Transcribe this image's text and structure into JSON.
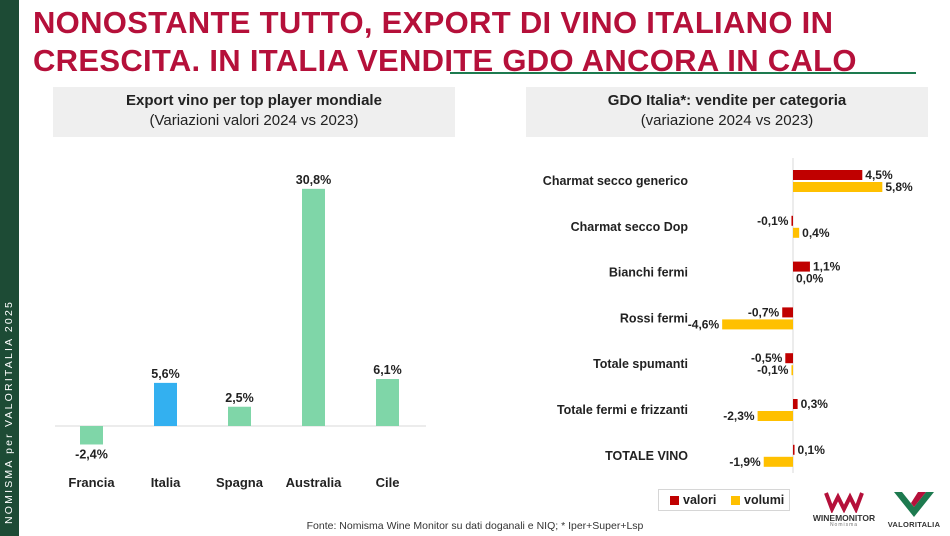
{
  "sidebar": {
    "text": "NOMISMA per VALORITALIA 2025"
  },
  "headline": {
    "line1": "NONOSTANTE TUTTO, EXPORT DI VINO ITALIANO IN",
    "line2": "CRESCITA. IN ITALIA VENDITE GDO ANCORA IN CALO"
  },
  "colors": {
    "headline": "#b5103a",
    "sidebar": "#1d4b35",
    "bar_green": "#7fd6a8",
    "bar_blue": "#33b0f0",
    "valori": "#c00000",
    "volumi": "#ffc000"
  },
  "chart_data": [
    {
      "type": "bar",
      "title": "Export vino per top player mondiale",
      "subtitle": "(Variazioni valori 2024 vs 2023)",
      "categories": [
        "Francia",
        "Italia",
        "Spagna",
        "Australia",
        "Cile"
      ],
      "values": [
        -2.4,
        5.6,
        2.5,
        30.8,
        6.1
      ],
      "labels": [
        "-2,4%",
        "5,6%",
        "2,5%",
        "30,8%",
        "6,1%"
      ],
      "highlight": "Italia",
      "ylim": [
        -3,
        32
      ]
    },
    {
      "type": "bar",
      "orientation": "horizontal",
      "title": "GDO Italia*: vendite per categoria",
      "subtitle": "(variazione 2024 vs 2023)",
      "categories": [
        "Charmat secco generico",
        "Charmat secco Dop",
        "Bianchi fermi",
        "Rossi fermi",
        "Totale spumanti",
        "Totale fermi e frizzanti",
        "TOTALE VINO"
      ],
      "series": [
        {
          "name": "valori",
          "values": [
            4.5,
            -0.1,
            1.1,
            -0.7,
            -0.5,
            0.3,
            0.1
          ],
          "labels": [
            "4,5%",
            "-0,1%",
            "1,1%",
            "-0,7%",
            "-0,5%",
            "0,3%",
            "0,1%"
          ]
        },
        {
          "name": "volumi",
          "values": [
            5.8,
            0.4,
            0.0,
            -4.6,
            -0.1,
            -2.3,
            -1.9
          ],
          "labels": [
            "5,8%",
            "0,4%",
            "0,0%",
            "-4,6%",
            "-0,1%",
            "-2,3%",
            "-1,9%"
          ]
        }
      ],
      "legend_position": "bottom-right"
    }
  ],
  "source": "Fonte: Nomisma Wine Monitor su dati doganali e NIQ; * Iper+Super+Lsp",
  "logos": {
    "winemonitor": "WINEMONITOR",
    "winemonitor_sub": "Nomisma",
    "valoritalia": "VALORITALIA"
  }
}
